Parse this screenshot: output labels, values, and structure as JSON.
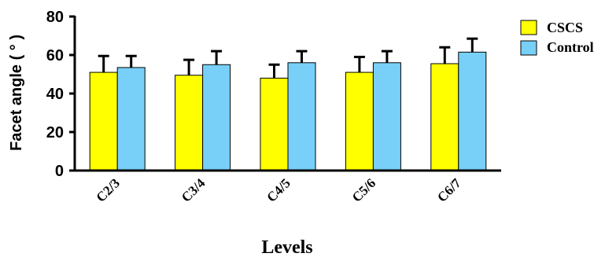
{
  "chart_data": {
    "type": "bar",
    "title": "",
    "xlabel": "Levels",
    "ylabel": "Facet  angle ( ° )",
    "ylim": [
      0,
      80
    ],
    "yticks": [
      0,
      20,
      40,
      60,
      80
    ],
    "categories": [
      "C2/3",
      "C3/4",
      "C4/5",
      "C5/6",
      "C6/7"
    ],
    "series": [
      {
        "name": "CSCS",
        "color": "#ffff00",
        "values": [
          51,
          49.5,
          48,
          51,
          55.5
        ],
        "errors": [
          8.5,
          8,
          7,
          8,
          8.5
        ]
      },
      {
        "name": "Control",
        "color": "#78d0f8",
        "values": [
          53.5,
          55,
          56,
          56,
          61.5
        ],
        "errors": [
          6,
          7,
          6,
          6,
          7
        ]
      }
    ],
    "legend_position": "top-right",
    "grid": false
  }
}
